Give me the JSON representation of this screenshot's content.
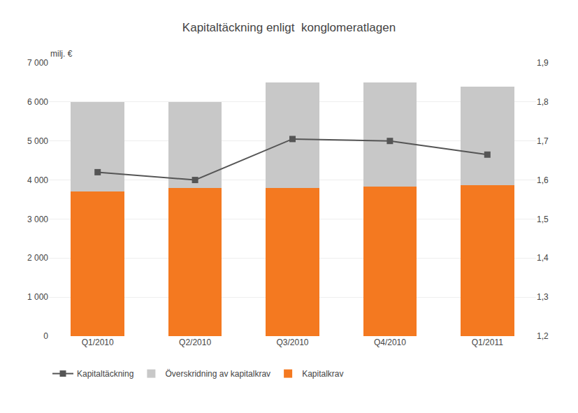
{
  "chart_data": {
    "type": "bar",
    "title": "Kapitaltäckning enligt  konglomeratlagen",
    "categories": [
      "Q1/2010",
      "Q2/2010",
      "Q3/2010",
      "Q4/2010",
      "Q1/2011"
    ],
    "stacked": true,
    "grid": true,
    "legend": "bottom",
    "ylabel": "milj. €",
    "series": [
      {
        "name": "Kapitalkrav",
        "type": "bar",
        "color": "#F47920",
        "values": [
          3700,
          3800,
          3800,
          3830,
          3860
        ]
      },
      {
        "name": "Överskridning av kapitalkrav",
        "type": "bar",
        "color": "#C8C8C8",
        "values": [
          2300,
          2200,
          2700,
          2670,
          2540
        ]
      },
      {
        "name": "Kapitaltäckning",
        "type": "line",
        "axis": "y2",
        "color": "#555555",
        "marker": "square",
        "values": [
          1.62,
          1.6,
          1.705,
          1.7,
          1.665
        ]
      }
    ],
    "ylim": [
      0,
      7000
    ],
    "yticks": [
      0,
      {
        "value": 1000,
        "label": "1 000"
      },
      {
        "value": 2000,
        "label": "2 000"
      },
      {
        "value": 3000,
        "label": "3 000"
      },
      {
        "value": 4000,
        "label": "4 000"
      },
      {
        "value": 5000,
        "label": "5 000"
      },
      {
        "value": 6000,
        "label": "6 000"
      },
      {
        "value": 7000,
        "label": "7 000"
      }
    ],
    "y2lim": [
      1.2,
      1.9
    ],
    "y2ticks": [
      {
        "value": 1.2,
        "label": "1,2"
      },
      {
        "value": 1.3,
        "label": "1,3"
      },
      {
        "value": 1.4,
        "label": "1,4"
      },
      {
        "value": 1.5,
        "label": "1,5"
      },
      {
        "value": 1.6,
        "label": "1,6"
      },
      {
        "value": 1.7,
        "label": "1,7"
      },
      {
        "value": 1.8,
        "label": "1,8"
      },
      {
        "value": 1.9,
        "label": "1,9"
      }
    ]
  }
}
